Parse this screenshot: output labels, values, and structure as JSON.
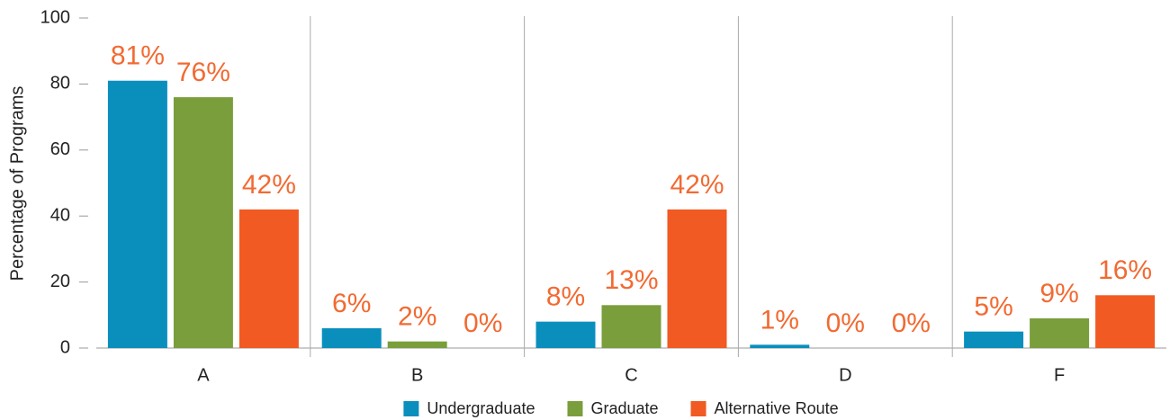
{
  "chart_data": {
    "type": "bar",
    "y_label": "Percentage of Programs",
    "categories": [
      "A",
      "B",
      "C",
      "D",
      "F"
    ],
    "series": [
      {
        "name": "Undergraduate",
        "color": "#0a8fbd",
        "values": [
          81,
          6,
          8,
          1,
          5
        ],
        "value_labels": [
          "81%",
          "6%",
          "8%",
          "1%",
          "5%"
        ]
      },
      {
        "name": "Graduate",
        "color": "#7a9e3b",
        "values": [
          76,
          2,
          13,
          0,
          9
        ],
        "value_labels": [
          "76%",
          "2%",
          "13%",
          "0%",
          "9%"
        ]
      },
      {
        "name": "Alternative Route",
        "color": "#f15a22",
        "values": [
          42,
          0,
          42,
          0,
          16
        ],
        "value_labels": [
          "42%",
          "0%",
          "42%",
          "0%",
          "16%"
        ]
      }
    ],
    "value_label_color": "#f26a32",
    "ylim": [
      0,
      100
    ],
    "yticks": [
      0,
      20,
      40,
      60,
      80,
      100
    ],
    "legend": "bottom"
  }
}
